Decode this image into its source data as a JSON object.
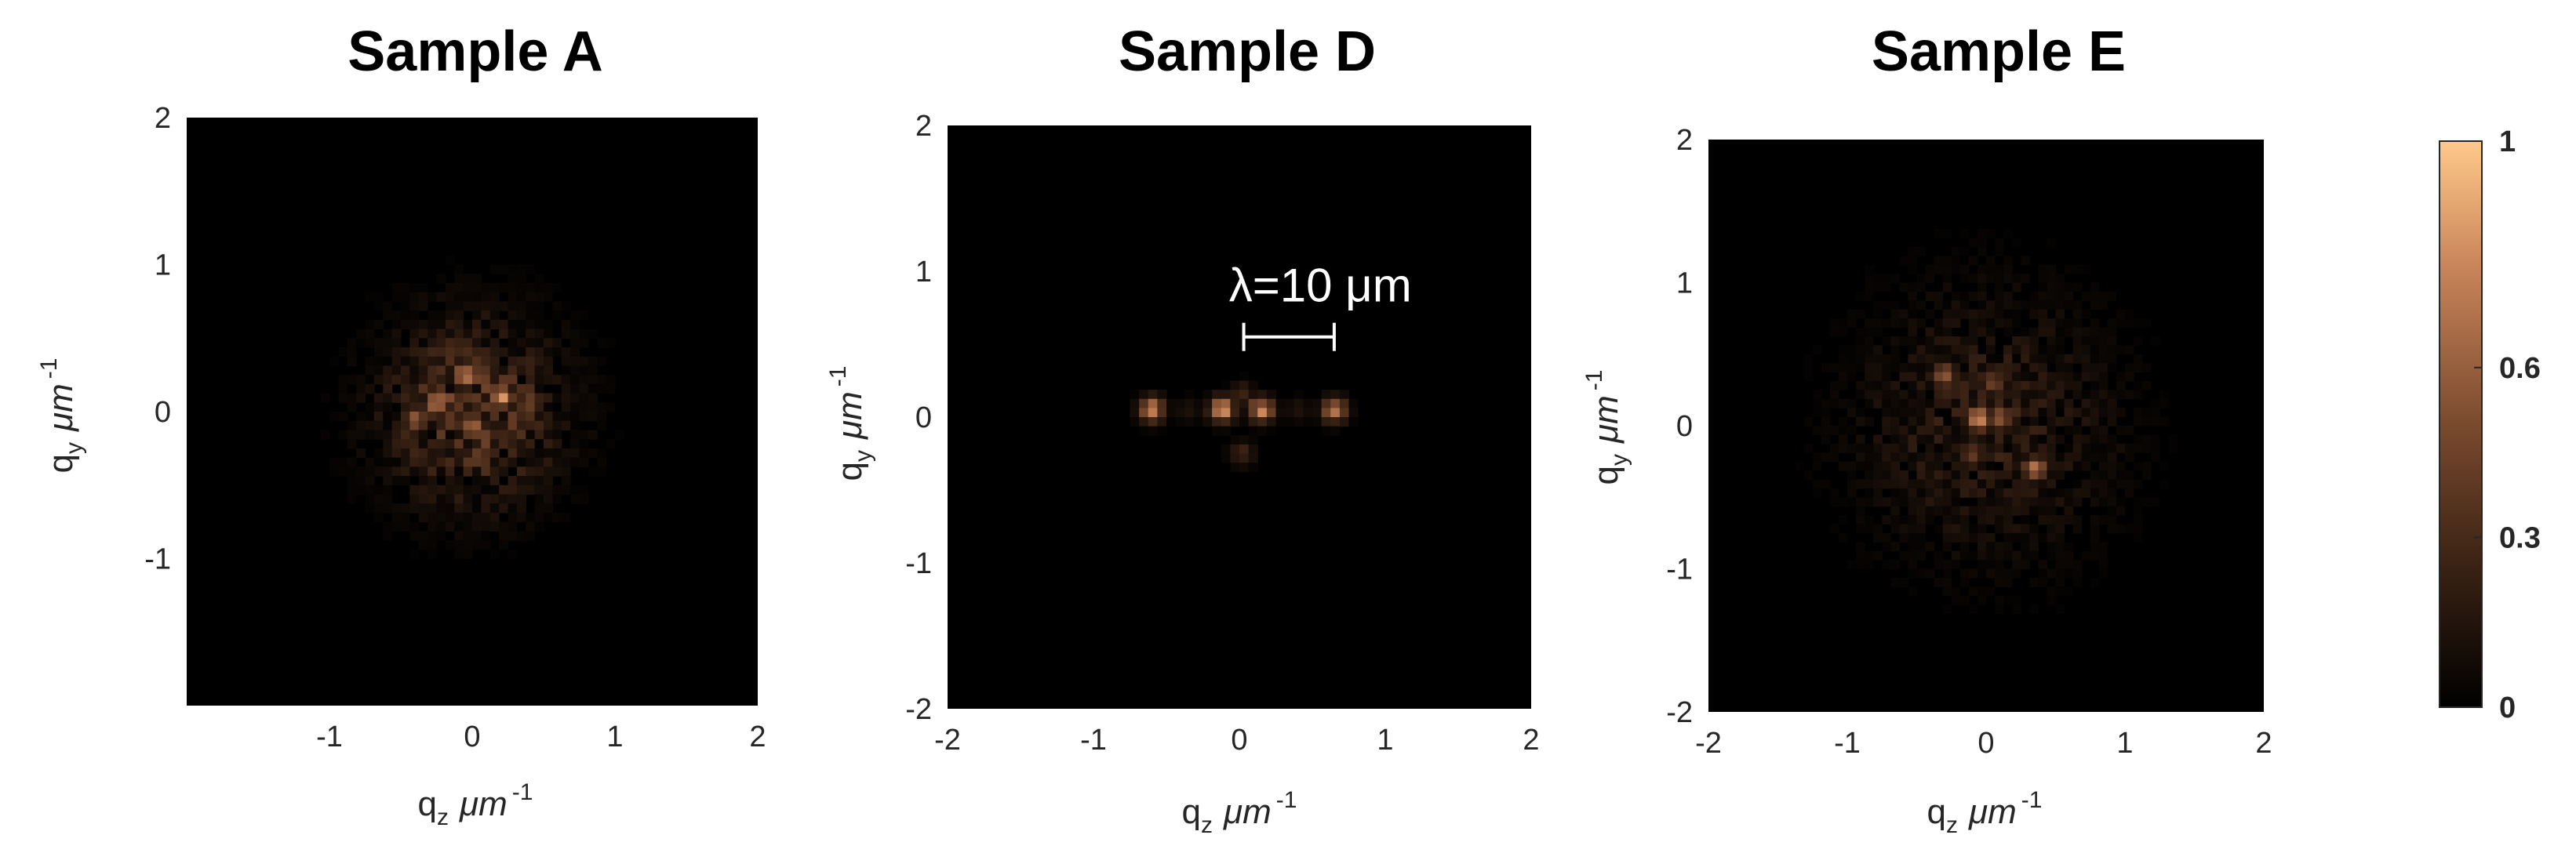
{
  "chart_data": [
    {
      "type": "heatmap",
      "title": "Sample A",
      "xlabel": "q",
      "xlabel_sub": "z",
      "xlabel_unit": "μm",
      "xlabel_exp": "-1",
      "ylabel": "q",
      "ylabel_sub": "y",
      "ylabel_unit": "μm",
      "ylabel_exp": "-1",
      "xlim": [
        -2,
        2
      ],
      "ylim": [
        -2,
        2
      ],
      "xticks": [
        "-1",
        "0",
        "1",
        "2"
      ],
      "xtick_values": [
        -1,
        0,
        1,
        2
      ],
      "yticks": [
        "2",
        "1",
        "0",
        "-1"
      ],
      "ytick_values": [
        2,
        1,
        0,
        -1
      ],
      "pattern": {
        "spread": 0.42,
        "peak": 1.0,
        "seed": 11,
        "hotspots": [
          {
            "x": -0.25,
            "y": 0.05,
            "v": 0.85
          },
          {
            "x": -0.05,
            "y": 0.25,
            "v": 0.8
          },
          {
            "x": 0.2,
            "y": 0.1,
            "v": 0.9
          },
          {
            "x": 0.0,
            "y": -0.1,
            "v": 0.75
          },
          {
            "x": -0.4,
            "y": -0.05,
            "v": 0.6
          },
          {
            "x": 0.4,
            "y": 0.05,
            "v": 0.55
          },
          {
            "x": 0.05,
            "y": -0.3,
            "v": 0.5
          }
        ]
      }
    },
    {
      "type": "heatmap",
      "title": "Sample D",
      "xlabel": "q",
      "xlabel_sub": "z",
      "xlabel_unit": "μm",
      "xlabel_exp": "-1",
      "ylabel": "q",
      "ylabel_sub": "y",
      "ylabel_unit": "μm",
      "ylabel_exp": "-1",
      "xlim": [
        -2,
        2
      ],
      "ylim": [
        -2,
        2
      ],
      "xticks": [
        "-2",
        "-1",
        "0",
        "1",
        "2"
      ],
      "xtick_values": [
        -2,
        -1,
        0,
        1,
        2
      ],
      "yticks": [
        "2",
        "1",
        "0",
        "-1",
        "-2"
      ],
      "ytick_values": [
        2,
        1,
        0,
        -1,
        -2
      ],
      "annotation": {
        "text": "λ=10 μm",
        "x_from": 0.03,
        "x_to": 0.65,
        "y": 0.55
      },
      "pattern": {
        "spread": 0.0,
        "peak": 1.0,
        "seed": 5,
        "hotspots": [
          {
            "x": -0.6,
            "y": 0.05,
            "v": 0.85
          },
          {
            "x": -0.12,
            "y": 0.05,
            "v": 0.9
          },
          {
            "x": 0.15,
            "y": 0.05,
            "v": 0.85
          },
          {
            "x": 0.65,
            "y": 0.05,
            "v": 0.8
          },
          {
            "x": 0.02,
            "y": 0.15,
            "v": 0.3
          },
          {
            "x": 0.02,
            "y": -0.25,
            "v": 0.3
          },
          {
            "x": -0.35,
            "y": 0.05,
            "v": 0.15
          },
          {
            "x": 0.4,
            "y": 0.05,
            "v": 0.15
          }
        ]
      }
    },
    {
      "type": "heatmap",
      "title": "Sample E",
      "xlabel": "q",
      "xlabel_sub": "z",
      "xlabel_unit": "μm",
      "xlabel_exp": "-1",
      "ylabel": "q",
      "ylabel_sub": "y",
      "ylabel_unit": "μm",
      "ylabel_exp": "-1",
      "xlim": [
        -2,
        2
      ],
      "ylim": [
        -2,
        2
      ],
      "xticks": [
        "-2",
        "-1",
        "0",
        "1",
        "2"
      ],
      "xtick_values": [
        -2,
        -1,
        0,
        1,
        2
      ],
      "yticks": [
        "2",
        "1",
        "0",
        "-1",
        "-2"
      ],
      "ytick_values": [
        2,
        1,
        0,
        -1,
        -2
      ],
      "pattern": {
        "spread": 0.6,
        "peak": 0.55,
        "seed": 23,
        "hotspots": [
          {
            "x": -0.3,
            "y": 0.35,
            "v": 0.7
          },
          {
            "x": -0.05,
            "y": 0.05,
            "v": 0.9
          },
          {
            "x": 0.1,
            "y": 0.05,
            "v": 0.65
          },
          {
            "x": 0.35,
            "y": -0.3,
            "v": 0.75
          },
          {
            "x": 0.05,
            "y": 0.3,
            "v": 0.5
          },
          {
            "x": -0.1,
            "y": -0.2,
            "v": 0.45
          }
        ]
      }
    }
  ],
  "colorbar": {
    "range": [
      0,
      1
    ],
    "ticks": [
      "1",
      "0.6",
      "0.3",
      "0"
    ],
    "tick_values": [
      1,
      0.6,
      0.3,
      0
    ],
    "colors": [
      "#000000",
      "#3a2214",
      "#7a4a2e",
      "#c9855a",
      "#ffc98a"
    ]
  }
}
